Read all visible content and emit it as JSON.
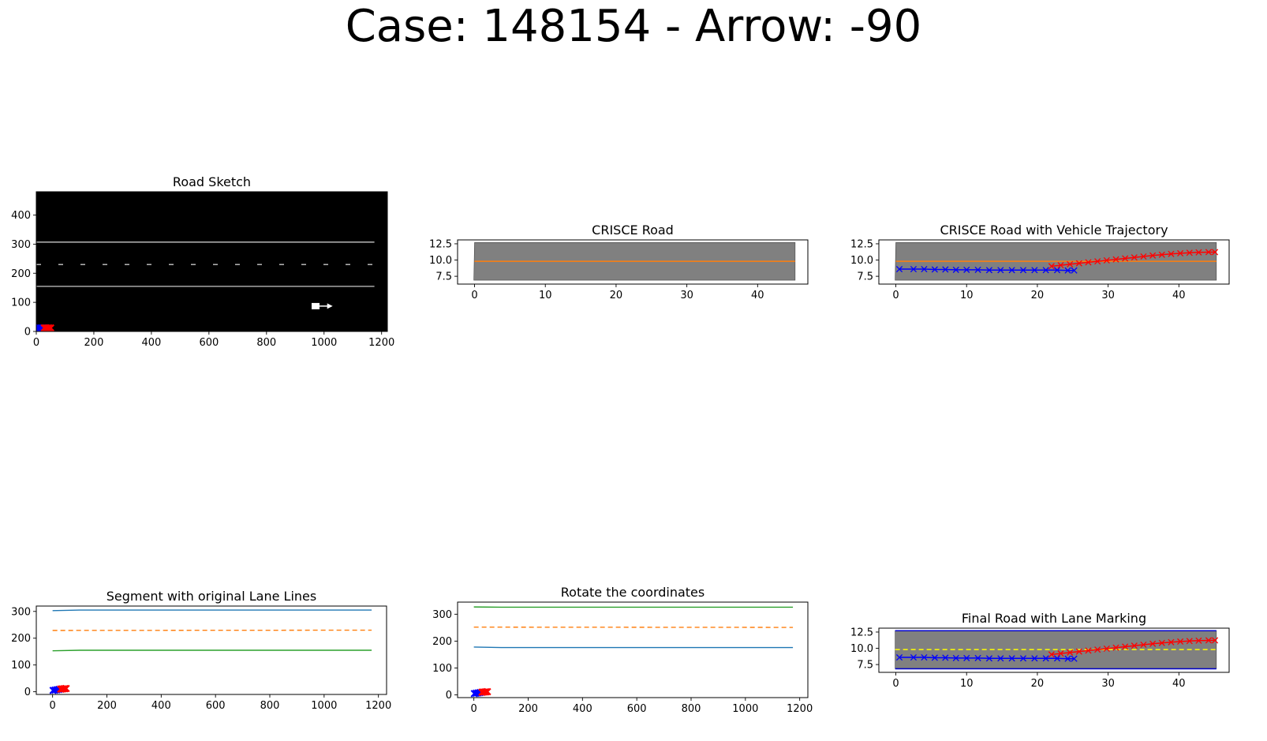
{
  "figure": {
    "suptitle": "Case: 148154 - Arrow: -90"
  },
  "chart_data": [
    {
      "id": "road_sketch",
      "type": "image",
      "title": "Road Sketch",
      "xlim": [
        0,
        1220
      ],
      "ylim": [
        0,
        480
      ],
      "xticks": [
        0,
        200,
        400,
        600,
        800,
        1000,
        1200
      ],
      "yticks": [
        0,
        100,
        200,
        300,
        400
      ],
      "image_extent": [
        0,
        1220,
        0,
        480
      ],
      "background": "#000000",
      "lines": [
        {
          "x": [
            0,
            1175
          ],
          "y": [
            307,
            307
          ],
          "color": "#c8c8c8",
          "style": "solid"
        },
        {
          "x": [
            0,
            1175
          ],
          "y": [
            230,
            230
          ],
          "color": "#c8c8c8",
          "style": "dashed"
        },
        {
          "x": [
            0,
            1175
          ],
          "y": [
            155,
            155
          ],
          "color": "#c8c8c8",
          "style": "solid"
        }
      ],
      "arrow": {
        "x0": 965,
        "x1": 1030,
        "y": 87,
        "color": "#ffffff"
      },
      "vehicles": [
        {
          "x": [
            5,
            28
          ],
          "y": [
            12,
            12
          ],
          "color": "#0000ff"
        },
        {
          "x": [
            28,
            50
          ],
          "y": [
            12,
            12
          ],
          "color": "#ff0000"
        }
      ]
    },
    {
      "id": "crisce_road",
      "type": "polygon",
      "title": "CRISCE Road",
      "xlim": [
        -2.4,
        47.1
      ],
      "ylim": [
        6.3,
        13.1
      ],
      "xticks": [
        0,
        10,
        20,
        30,
        40
      ],
      "yticks": [
        7.5,
        10.0,
        12.5
      ],
      "road_polygon": [
        [
          0.0,
          12.7
        ],
        [
          45.3,
          12.7
        ],
        [
          45.3,
          6.9
        ],
        [
          -0.1,
          6.9
        ]
      ],
      "road_color": "#808080",
      "center_line": {
        "x": [
          0,
          45.3
        ],
        "y": [
          9.8,
          9.8
        ],
        "color": "#ff7f0e"
      }
    },
    {
      "id": "crisce_trajectory",
      "type": "line",
      "title": "CRISCE Road with Vehicle Trajectory",
      "xlim": [
        -2.4,
        47.1
      ],
      "ylim": [
        6.3,
        13.1
      ],
      "xticks": [
        0,
        10,
        20,
        30,
        40
      ],
      "yticks": [
        7.5,
        10.0,
        12.5
      ],
      "road_polygon": [
        [
          0.0,
          12.7
        ],
        [
          45.3,
          12.7
        ],
        [
          45.3,
          6.9
        ],
        [
          -0.1,
          6.9
        ]
      ],
      "road_color": "#808080",
      "center_line": {
        "x": [
          0,
          45.3
        ],
        "y": [
          9.8,
          9.8
        ],
        "color": "#ff7f0e"
      },
      "series": [
        {
          "color": "#0000ff",
          "marker": "x",
          "x": [
            0.5,
            2.5,
            4.0,
            5.5,
            7.0,
            8.5,
            10.0,
            11.6,
            13.2,
            14.8,
            16.4,
            18.0,
            19.6,
            21.2,
            22.8,
            24.3,
            25.2
          ],
          "y": [
            8.6,
            8.6,
            8.6,
            8.55,
            8.55,
            8.5,
            8.5,
            8.5,
            8.45,
            8.45,
            8.45,
            8.45,
            8.45,
            8.45,
            8.45,
            8.4,
            8.4
          ]
        },
        {
          "color": "#ff0000",
          "marker": "x",
          "x": [
            22.0,
            23.3,
            24.6,
            25.9,
            27.2,
            28.5,
            29.8,
            31.1,
            32.4,
            33.7,
            35.0,
            36.3,
            37.6,
            38.9,
            40.2,
            41.5,
            42.8,
            44.2,
            45.1
          ],
          "y": [
            9.05,
            9.2,
            9.35,
            9.5,
            9.65,
            9.8,
            9.95,
            10.1,
            10.25,
            10.4,
            10.55,
            10.7,
            10.82,
            10.94,
            11.04,
            11.12,
            11.18,
            11.22,
            11.22
          ]
        }
      ]
    },
    {
      "id": "segment_lane_lines",
      "type": "line",
      "title": "Segment with original Lane Lines",
      "xlim": [
        -60,
        1230
      ],
      "ylim": [
        -10,
        320
      ],
      "xticks": [
        0,
        200,
        400,
        600,
        800,
        1000,
        1200
      ],
      "yticks": [
        0,
        100,
        200,
        300
      ],
      "series": [
        {
          "color": "#1f77b4",
          "style": "solid",
          "x": [
            0,
            100,
            1175
          ],
          "y": [
            303,
            305,
            305
          ]
        },
        {
          "color": "#ff7f0e",
          "style": "dashed",
          "x": [
            0,
            1175
          ],
          "y": [
            229,
            230
          ]
        },
        {
          "color": "#2ca02c",
          "style": "solid",
          "x": [
            0,
            100,
            1175
          ],
          "y": [
            153,
            155,
            155
          ]
        }
      ],
      "vehicles": [
        {
          "x": [
            2,
            30
          ],
          "y": [
            5,
            10
          ],
          "color": "#0000ff"
        },
        {
          "x": [
            30,
            50
          ],
          "y": [
            10,
            12
          ],
          "color": "#ff0000"
        }
      ]
    },
    {
      "id": "rotate_coordinates",
      "type": "line",
      "title": "Rotate the coordinates",
      "xlim": [
        -60,
        1230
      ],
      "ylim": [
        -10,
        345
      ],
      "xticks": [
        0,
        200,
        400,
        600,
        800,
        1000,
        1200
      ],
      "yticks": [
        0,
        100,
        200,
        300
      ],
      "series": [
        {
          "color": "#2ca02c",
          "style": "solid",
          "x": [
            0,
            100,
            1175
          ],
          "y": [
            327,
            326,
            326
          ]
        },
        {
          "color": "#ff7f0e",
          "style": "dashed",
          "x": [
            0,
            1175
          ],
          "y": [
            252,
            251
          ]
        },
        {
          "color": "#1f77b4",
          "style": "solid",
          "x": [
            0,
            100,
            1175
          ],
          "y": [
            178,
            176,
            176
          ]
        }
      ],
      "vehicles": [
        {
          "x": [
            2,
            30
          ],
          "y": [
            5,
            10
          ],
          "color": "#0000ff"
        },
        {
          "x": [
            30,
            50
          ],
          "y": [
            10,
            12
          ],
          "color": "#ff0000"
        }
      ]
    },
    {
      "id": "final_road",
      "type": "line",
      "title": "Final Road with Lane Marking",
      "xlim": [
        -2.4,
        47.1
      ],
      "ylim": [
        6.3,
        13.1
      ],
      "xticks": [
        0,
        10,
        20,
        30,
        40
      ],
      "yticks": [
        7.5,
        10.0,
        12.5
      ],
      "road_polygon": [
        [
          -0.1,
          12.7
        ],
        [
          45.3,
          12.7
        ],
        [
          45.3,
          6.9
        ],
        [
          -0.1,
          6.9
        ]
      ],
      "road_color": "#808080",
      "edge_lines": [
        {
          "x": [
            -0.1,
            45.3
          ],
          "y": [
            12.7,
            12.7
          ],
          "color": "#0000cd"
        },
        {
          "x": [
            -0.1,
            45.3
          ],
          "y": [
            6.85,
            6.85
          ],
          "color": "#0000cd"
        }
      ],
      "center_line": {
        "x": [
          -0.1,
          45.3
        ],
        "y": [
          9.8,
          9.8
        ],
        "color": "#ffff00",
        "style": "dashed"
      },
      "series": [
        {
          "color": "#0000ff",
          "marker": "x",
          "x": [
            0.5,
            2.5,
            4.0,
            5.5,
            7.0,
            8.5,
            10.0,
            11.6,
            13.2,
            14.8,
            16.4,
            18.0,
            19.6,
            21.2,
            22.8,
            24.3,
            25.2
          ],
          "y": [
            8.6,
            8.6,
            8.6,
            8.55,
            8.55,
            8.5,
            8.5,
            8.5,
            8.45,
            8.45,
            8.45,
            8.45,
            8.45,
            8.45,
            8.45,
            8.4,
            8.4
          ]
        },
        {
          "color": "#ff0000",
          "marker": "x",
          "x": [
            22.0,
            23.3,
            24.6,
            25.9,
            27.2,
            28.5,
            29.8,
            31.1,
            32.4,
            33.7,
            35.0,
            36.3,
            37.6,
            38.9,
            40.2,
            41.5,
            42.8,
            44.2,
            45.1
          ],
          "y": [
            9.05,
            9.2,
            9.35,
            9.5,
            9.65,
            9.8,
            9.95,
            10.1,
            10.25,
            10.4,
            10.55,
            10.7,
            10.82,
            10.94,
            11.04,
            11.12,
            11.18,
            11.22,
            11.22
          ]
        }
      ]
    }
  ]
}
